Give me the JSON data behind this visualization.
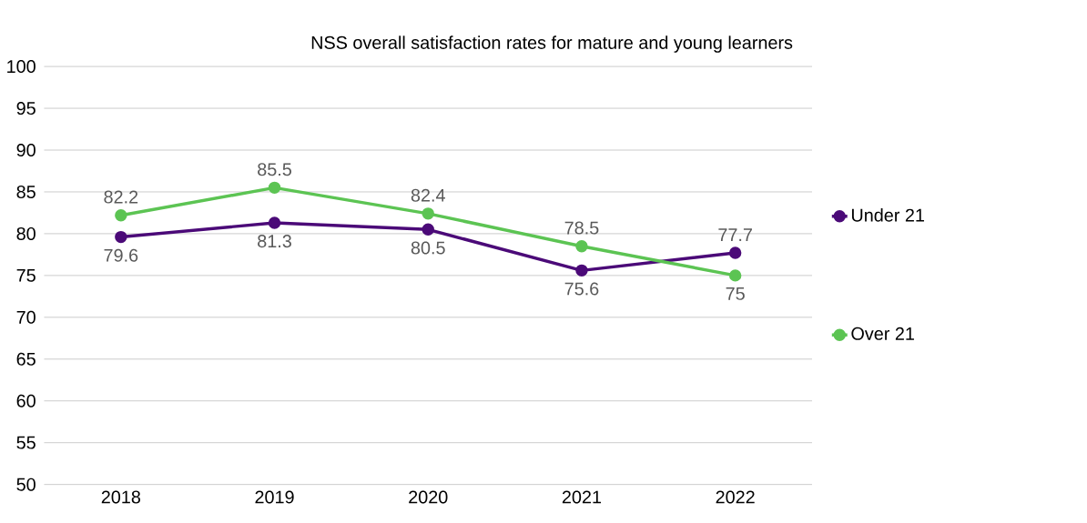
{
  "chart_data": {
    "type": "line",
    "title": "NSS overall satisfaction rates for mature and young learners",
    "categories": [
      "2018",
      "2019",
      "2020",
      "2021",
      "2022"
    ],
    "series": [
      {
        "name": "Under 21",
        "color": "#4b0a78",
        "values": [
          79.6,
          81.3,
          80.5,
          75.6,
          77.7
        ]
      },
      {
        "name": "Over 21",
        "color": "#5cc453",
        "values": [
          82.2,
          85.5,
          82.4,
          78.5,
          75
        ]
      }
    ],
    "ylim": [
      50,
      100
    ],
    "yticks": [
      50,
      55,
      60,
      65,
      70,
      75,
      80,
      85,
      90,
      95,
      100
    ],
    "grid": "y",
    "legend": "right",
    "marker": "circle",
    "line_style": "solid",
    "data_labels": true
  }
}
